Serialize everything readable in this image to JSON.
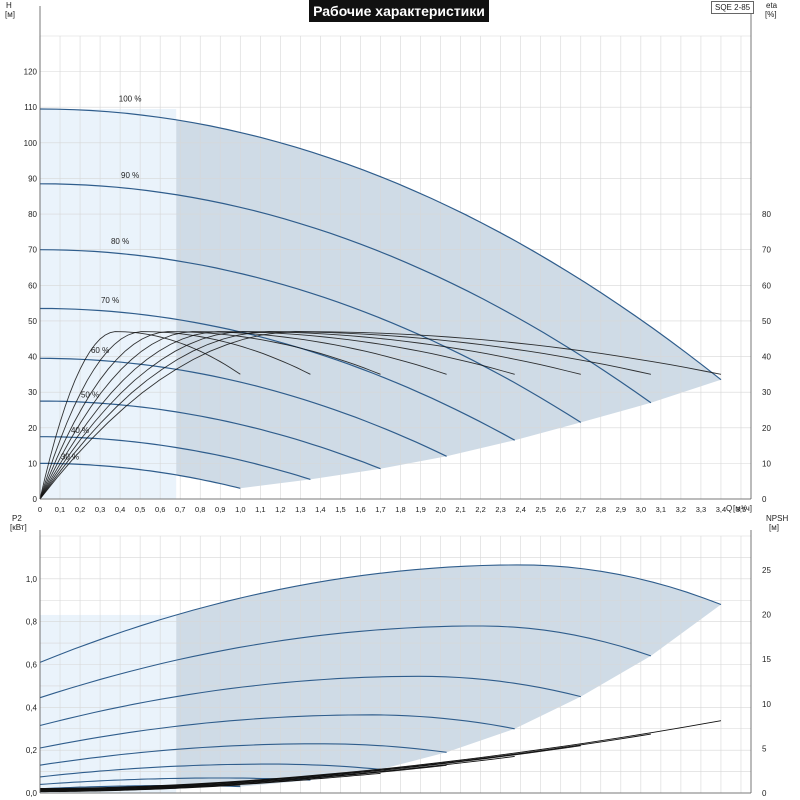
{
  "title": "Рабочие характеристики",
  "model": "SQE 2-85",
  "colors": {
    "envelope": "#cfdbe6",
    "low_flow_region": "#eaf3fb",
    "curve": "#2f5d8c",
    "efficiency": "#111111",
    "grid": "#d7d7d7",
    "text": "#222222"
  },
  "top_axes": {
    "left_label": "H",
    "left_unit": "[м]",
    "right_label": "eta",
    "right_unit": "[%]",
    "x_label": "Q",
    "x_unit": "[м³/ч]"
  },
  "bottom_axes": {
    "left_label": "P2",
    "left_unit": "[кВт]",
    "right_label": "NPSH",
    "right_unit": "[м]"
  },
  "chart_data": [
    {
      "type": "line",
      "panel": "head-efficiency",
      "title": "Рабочие характеристики",
      "xlabel": "Q [м³/ч]",
      "ylabel": "H [м]",
      "y2label": "eta [%]",
      "xlim": [
        0,
        3.55
      ],
      "ylim": [
        0,
        130
      ],
      "y2lim": [
        0,
        130
      ],
      "x_ticks": [
        0,
        0.1,
        0.2,
        0.3,
        0.4,
        0.5,
        0.6,
        0.7,
        0.8,
        0.9,
        1.0,
        1.1,
        1.2,
        1.3,
        1.4,
        1.5,
        1.6,
        1.7,
        1.8,
        1.9,
        2.0,
        2.1,
        2.2,
        2.3,
        2.4,
        2.5,
        2.6,
        2.7,
        2.8,
        2.9,
        3.0,
        3.1,
        3.2,
        3.3,
        3.4,
        3.5
      ],
      "x_tick_labels": [
        "0",
        "0,1",
        "0,2",
        "0,3",
        "0,4",
        "0,5",
        "0,6",
        "0,7",
        "0,8",
        "0,9",
        "1,0",
        "1,1",
        "1,2",
        "1,3",
        "1,4",
        "1,5",
        "1,6",
        "1,7",
        "1,8",
        "1,9",
        "2,0",
        "2,1",
        "2,2",
        "2,3",
        "2,4",
        "2,5",
        "2,6",
        "2,7",
        "2,8",
        "2,9",
        "3,0",
        "3,1",
        "3,2",
        "3,3",
        "3,4",
        "3,5"
      ],
      "y_ticks": [
        0,
        10,
        20,
        30,
        40,
        50,
        60,
        70,
        80,
        90,
        100,
        110,
        120
      ],
      "y2_ticks": [
        0,
        10,
        20,
        30,
        40,
        50,
        60,
        70,
        80
      ],
      "low_flow_limit_q": 0.68,
      "head_curves": [
        {
          "name": "100 %",
          "h0": 109.5,
          "qmax": 3.4,
          "hend": 33.5,
          "label_x": 0.45,
          "label_y": 111
        },
        {
          "name": "90 %",
          "h0": 88.5,
          "qmax": 3.05,
          "hend": 27,
          "label_x": 0.45,
          "label_y": 89.5
        },
        {
          "name": "80 %",
          "h0": 70,
          "qmax": 2.7,
          "hend": 21.5,
          "label_x": 0.4,
          "label_y": 71
        },
        {
          "name": "70 %",
          "h0": 53.5,
          "qmax": 2.37,
          "hend": 16.5,
          "label_x": 0.35,
          "label_y": 54.5
        },
        {
          "name": "60 %",
          "h0": 39.5,
          "qmax": 2.03,
          "hend": 12,
          "label_x": 0.3,
          "label_y": 40.5
        },
        {
          "name": "50 %",
          "h0": 27.5,
          "qmax": 1.7,
          "hend": 8.5,
          "label_x": 0.25,
          "label_y": 28
        },
        {
          "name": "40 %",
          "h0": 17.5,
          "qmax": 1.35,
          "hend": 5.5,
          "label_x": 0.2,
          "label_y": 18
        },
        {
          "name": "30 %",
          "h0": 10,
          "qmax": 1.0,
          "hend": 3,
          "label_x": 0.15,
          "label_y": 10.5
        }
      ],
      "efficiency_curves": [
        {
          "qmax": 1.0,
          "eta_max": 47,
          "eta_end": 35
        },
        {
          "qmax": 1.35,
          "eta_max": 47,
          "eta_end": 35
        },
        {
          "qmax": 1.7,
          "eta_max": 47,
          "eta_end": 35
        },
        {
          "qmax": 2.03,
          "eta_max": 47,
          "eta_end": 35
        },
        {
          "qmax": 2.37,
          "eta_max": 47,
          "eta_end": 35
        },
        {
          "qmax": 2.7,
          "eta_max": 47,
          "eta_end": 35
        },
        {
          "qmax": 3.05,
          "eta_max": 47,
          "eta_end": 35
        },
        {
          "qmax": 3.4,
          "eta_max": 47,
          "eta_end": 35
        }
      ]
    },
    {
      "type": "line",
      "panel": "power-npsh",
      "xlabel": "Q [м³/ч]",
      "ylabel": "P2 [кВт]",
      "y2label": "NPSH [м]",
      "xlim": [
        0,
        3.55
      ],
      "ylim": [
        0,
        1.2
      ],
      "y2lim": [
        0,
        28.8
      ],
      "y_ticks": [
        0,
        0.2,
        0.4,
        0.6,
        0.8,
        1.0
      ],
      "y_tick_labels": [
        "0,0",
        "0,2",
        "0,4",
        "0,6",
        "0,8",
        "1,0"
      ],
      "y2_ticks": [
        0,
        5,
        10,
        15,
        20,
        25
      ],
      "power_curves": [
        {
          "speed": "100 %",
          "p0": 0.61,
          "qpeak": 2.4,
          "ppeak": 1.065,
          "qmax": 3.4,
          "pend": 0.88
        },
        {
          "speed": "90 %",
          "p0": 0.445,
          "qpeak": 2.2,
          "ppeak": 0.78,
          "qmax": 3.05,
          "pend": 0.64
        },
        {
          "speed": "80 %",
          "p0": 0.315,
          "qpeak": 1.9,
          "ppeak": 0.545,
          "qmax": 2.7,
          "pend": 0.45
        },
        {
          "speed": "70 %",
          "p0": 0.21,
          "qpeak": 1.65,
          "ppeak": 0.365,
          "qmax": 2.37,
          "pend": 0.3
        },
        {
          "speed": "60 %",
          "p0": 0.13,
          "qpeak": 1.4,
          "ppeak": 0.23,
          "qmax": 2.03,
          "pend": 0.19
        },
        {
          "speed": "50 %",
          "p0": 0.075,
          "qpeak": 1.15,
          "ppeak": 0.135,
          "qmax": 1.7,
          "pend": 0.11
        },
        {
          "speed": "40 %",
          "p0": 0.04,
          "qpeak": 0.9,
          "ppeak": 0.07,
          "qmax": 1.35,
          "pend": 0.06
        },
        {
          "speed": "30 %",
          "p0": 0.02,
          "qpeak": 0.7,
          "ppeak": 0.035,
          "qmax": 1.0,
          "pend": 0.03
        }
      ],
      "npsh_curves": [
        {
          "speed": "100 %",
          "n0": 0.5,
          "qmax": 3.4,
          "nend": 8.1
        },
        {
          "speed": "90 %",
          "n0": 0.45,
          "qmax": 3.05,
          "nend": 6.6
        },
        {
          "speed": "80 %",
          "n0": 0.4,
          "qmax": 2.7,
          "nend": 5.3
        },
        {
          "speed": "70 %",
          "n0": 0.35,
          "qmax": 2.37,
          "nend": 4.1
        },
        {
          "speed": "60 %",
          "n0": 0.3,
          "qmax": 2.03,
          "nend": 3.1
        },
        {
          "speed": "50 %",
          "n0": 0.25,
          "qmax": 1.7,
          "nend": 2.2
        },
        {
          "speed": "40 %",
          "n0": 0.2,
          "qmax": 1.35,
          "nend": 1.5
        },
        {
          "speed": "30 %",
          "n0": 0.15,
          "qmax": 1.0,
          "nend": 0.9
        }
      ]
    }
  ]
}
